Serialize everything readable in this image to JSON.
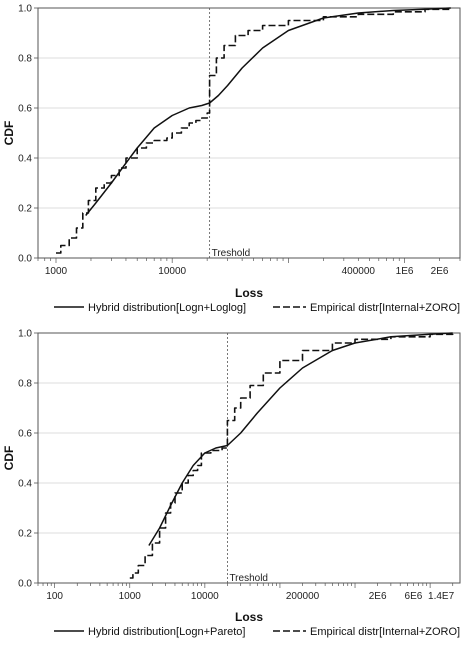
{
  "chart_data": [
    {
      "type": "line",
      "title": "",
      "xlabel": "Loss",
      "ylabel": "CDF",
      "x_scale": "log",
      "xlim": [
        700,
        3000000
      ],
      "ylim": [
        0,
        1
      ],
      "x_tick_values": [
        1000,
        10000,
        400000,
        1000000,
        2000000
      ],
      "x_tick_labels": [
        "1000",
        "10000",
        "400000",
        "1E6",
        "2E6"
      ],
      "y_tick_values": [
        0,
        0.2,
        0.4,
        0.6,
        0.8,
        1.0
      ],
      "y_tick_labels": [
        "0.0",
        "0.2",
        "0.4",
        "0.6",
        "0.8",
        "1.0"
      ],
      "grid": "horizontal",
      "legend_position": "bottom",
      "annotation": {
        "label": "Treshold",
        "x": 21000
      },
      "series": [
        {
          "name": "Hybrid distribution[Logn+Loglog]",
          "style": "solid",
          "x": [
            1800,
            2200,
            3000,
            4000,
            5000,
            7000,
            10000,
            14000,
            18000,
            21000,
            25000,
            30000,
            40000,
            60000,
            100000,
            200000,
            400000,
            800000,
            1500000,
            2500000
          ],
          "y": [
            0.17,
            0.22,
            0.3,
            0.38,
            0.44,
            0.52,
            0.57,
            0.6,
            0.61,
            0.62,
            0.65,
            0.69,
            0.76,
            0.84,
            0.91,
            0.96,
            0.98,
            0.99,
            0.995,
            1.0
          ]
        },
        {
          "name": "Empirical distr[Internal+ZORO]",
          "style": "dashed",
          "x": [
            1000,
            1100,
            1300,
            1500,
            1700,
            1900,
            2200,
            2600,
            3000,
            3500,
            4000,
            5000,
            6000,
            7000,
            8000,
            9000,
            10000,
            12000,
            14000,
            16000,
            18000,
            20000,
            21000,
            21000,
            24000,
            28000,
            35000,
            45000,
            60000,
            100000,
            200000,
            400000,
            800000,
            1500000,
            2500000
          ],
          "y": [
            0.02,
            0.05,
            0.08,
            0.12,
            0.18,
            0.23,
            0.28,
            0.3,
            0.33,
            0.36,
            0.4,
            0.44,
            0.46,
            0.47,
            0.47,
            0.48,
            0.5,
            0.52,
            0.54,
            0.55,
            0.56,
            0.58,
            0.61,
            0.73,
            0.8,
            0.85,
            0.89,
            0.91,
            0.93,
            0.95,
            0.965,
            0.975,
            0.985,
            0.995,
            1.0
          ]
        }
      ]
    },
    {
      "type": "line",
      "title": "",
      "xlabel": "Loss",
      "ylabel": "CDF",
      "x_scale": "log",
      "xlim": [
        60,
        25000000
      ],
      "ylim": [
        0,
        1
      ],
      "x_tick_values": [
        100,
        1000,
        10000,
        200000,
        2000000,
        6000000,
        14000000
      ],
      "x_tick_labels": [
        "100",
        "1000",
        "10000",
        "200000",
        "2E6",
        "6E6",
        "1.4E7"
      ],
      "y_tick_values": [
        0,
        0.2,
        0.4,
        0.6,
        0.8,
        1.0
      ],
      "y_tick_labels": [
        "0.0",
        "0.2",
        "0.4",
        "0.6",
        "0.8",
        "1.0"
      ],
      "grid": "horizontal",
      "legend_position": "bottom",
      "annotation": {
        "label": "Treshold",
        "x": 20000
      },
      "series": [
        {
          "name": "Hybrid distribution[Logn+Pareto]",
          "style": "solid",
          "x": [
            1800,
            2500,
            3500,
            5000,
            7000,
            10000,
            14000,
            20000,
            30000,
            50000,
            100000,
            200000,
            500000,
            1000000,
            3000000,
            10000000,
            20000000
          ],
          "y": [
            0.15,
            0.22,
            0.31,
            0.4,
            0.47,
            0.52,
            0.54,
            0.55,
            0.6,
            0.68,
            0.78,
            0.86,
            0.93,
            0.96,
            0.985,
            0.995,
            1.0
          ]
        },
        {
          "name": "Empirical distr[Internal+ZORO]",
          "style": "dashed",
          "x": [
            1000,
            1100,
            1300,
            1600,
            2000,
            2500,
            3000,
            3500,
            4000,
            5000,
            6000,
            7000,
            8000,
            9000,
            10000,
            12000,
            14000,
            17000,
            20000,
            20000,
            25000,
            30000,
            40000,
            60000,
            100000,
            200000,
            500000,
            1000000,
            3000000,
            10000000,
            20000000
          ],
          "y": [
            0.02,
            0.04,
            0.07,
            0.11,
            0.16,
            0.22,
            0.28,
            0.32,
            0.36,
            0.4,
            0.43,
            0.45,
            0.47,
            0.52,
            0.52,
            0.53,
            0.53,
            0.54,
            0.54,
            0.65,
            0.7,
            0.74,
            0.79,
            0.84,
            0.89,
            0.93,
            0.96,
            0.975,
            0.985,
            0.995,
            1.0
          ]
        }
      ]
    }
  ]
}
